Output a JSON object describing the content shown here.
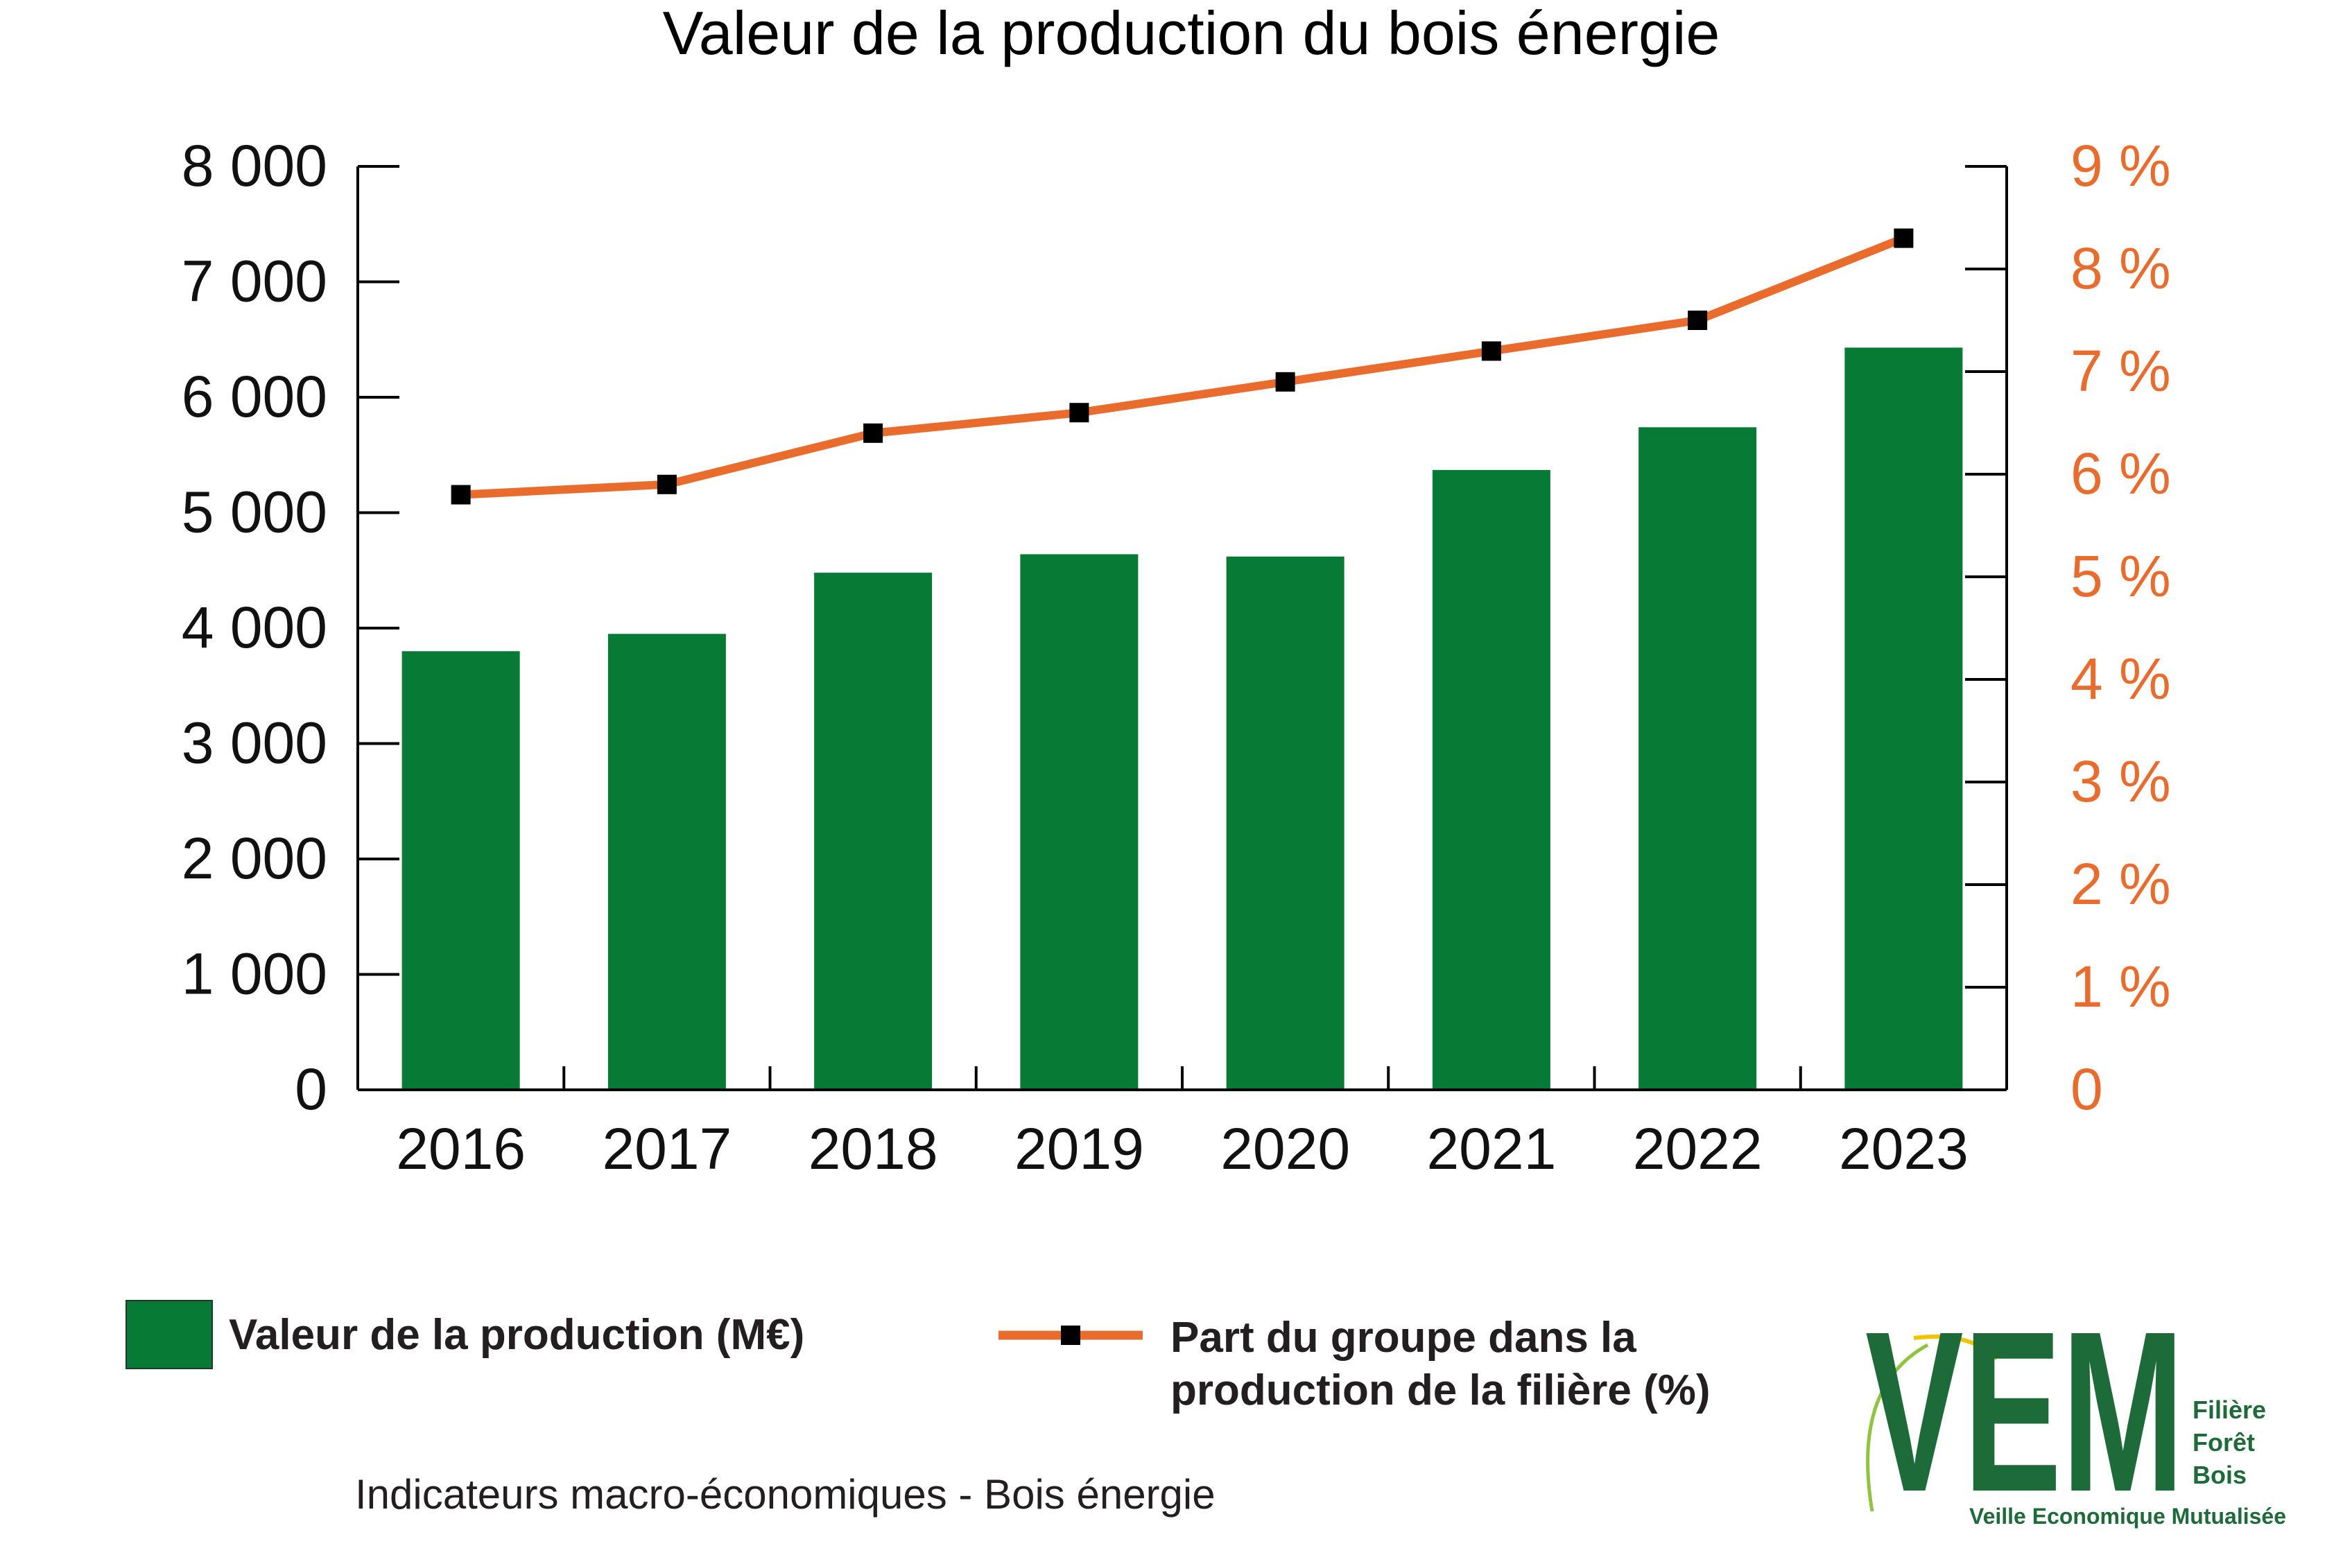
{
  "chart_data": {
    "type": "bar",
    "title": "Valeur de la production du bois énergie",
    "categories": [
      "2016",
      "2017",
      "2018",
      "2019",
      "2020",
      "2021",
      "2022",
      "2023"
    ],
    "series": [
      {
        "name": "Valeur de la production (M€)",
        "type": "bar",
        "axis": "left",
        "color": "#077b35",
        "values": [
          3800,
          3950,
          4480,
          4640,
          4620,
          5370,
          5740,
          6430
        ]
      },
      {
        "name": "Part du groupe dans la production de la filière (%)",
        "type": "line",
        "axis": "right",
        "color": "#ea6c2d",
        "marker_color": "#000000",
        "values": [
          5.8,
          5.9,
          6.4,
          6.6,
          6.9,
          7.2,
          7.5,
          8.3
        ]
      }
    ],
    "y_left": {
      "ylim": [
        0,
        8000
      ],
      "ticks": [
        0,
        1000,
        2000,
        3000,
        4000,
        5000,
        6000,
        7000,
        8000
      ],
      "tick_labels": [
        "0",
        "1 000",
        "2 000",
        "3 000",
        "4 000",
        "5 000",
        "6 000",
        "7 000",
        "8 000"
      ]
    },
    "y_right": {
      "ylim": [
        0,
        9
      ],
      "ticks": [
        0,
        1,
        2,
        3,
        4,
        5,
        6,
        7,
        8,
        9
      ],
      "tick_labels": [
        "0",
        "1 %",
        "2 %",
        "3 %",
        "4 %",
        "5 %",
        "6 %",
        "7 %",
        "8 %",
        "9 %"
      ],
      "color": "#ea6c2d"
    },
    "grid": false,
    "legend_position": "bottom"
  },
  "legend": {
    "bar_label": "Valeur de la production (M€)",
    "line_label_1": "Part du groupe dans la",
    "line_label_2": "production de la filière (%)"
  },
  "footer": "Indicateurs macro-économiques - Bois énergie",
  "logo": {
    "letters": "VEM",
    "line1": "Filière",
    "line2": "Forêt",
    "line3": "Bois",
    "tagline": "Veille Economique Mutualisée",
    "color": "#1e6b3a",
    "accent": "#f2c400"
  }
}
